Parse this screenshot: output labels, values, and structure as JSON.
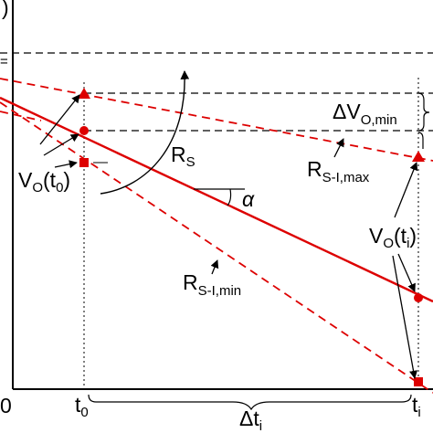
{
  "colors": {
    "line": "#dd0000",
    "ink": "#000000"
  },
  "labels": {
    "y_axis_fragment": ")",
    "y_ref_fragment": "=",
    "origin": "0",
    "t0_letter": "t",
    "t0_sub": "0",
    "ti_letter": "t",
    "ti_sub": "i",
    "dt_letter": "Δt",
    "dt_sub": "i",
    "rs_letter": "R",
    "rs_sub": "S",
    "alpha": "α",
    "dv_letter": "ΔV",
    "dv_sub": "O,min",
    "rmax_letter": "R",
    "rmax_sub": "S-I,max",
    "rmin_letter": "R",
    "rmin_sub": "S-I,min",
    "vo0_letter": "V",
    "vo0_sub": "O",
    "vo0_open": "(t",
    "vo0_arg": "0",
    "vo0_close": ")",
    "voi_letter": "V",
    "voi_sub": "O",
    "voi_open": "(t",
    "voi_arg": "i",
    "voi_close": ")"
  }
}
